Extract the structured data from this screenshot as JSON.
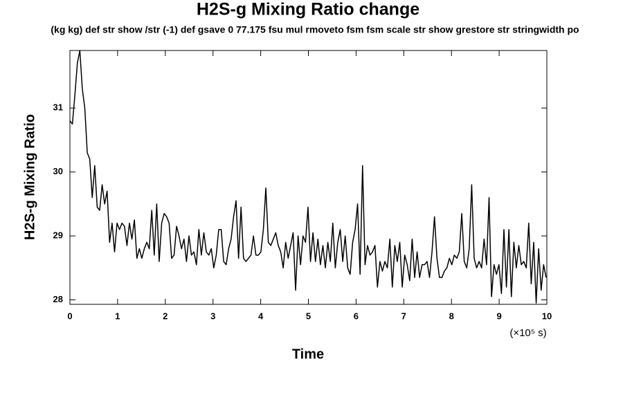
{
  "chart_data": {
    "type": "line",
    "title": "H2S-g Mixing Ratio change",
    "subtitle": "(kg kg) def str show /str (-1) def gsave 0 77.175 fsu mul rmoveto fsm fsm scale str show grestore str stringwidth po",
    "x_label": "Time",
    "x_unit": "(×10⁵ s)",
    "y_label": "H2S-g Mixing Ratio",
    "x": [
      0,
      0.052,
      0.104,
      0.156,
      0.208,
      0.26,
      0.312,
      0.364,
      0.416,
      0.468,
      0.52,
      0.572,
      0.624,
      0.676,
      0.728,
      0.78,
      0.832,
      0.884,
      0.936,
      0.988,
      1.04,
      1.092,
      1.144,
      1.196,
      1.248,
      1.3,
      1.352,
      1.404,
      1.456,
      1.508,
      1.56,
      1.612,
      1.664,
      1.716,
      1.768,
      1.82,
      1.872,
      1.924,
      1.976,
      2.028,
      2.08,
      2.132,
      2.184,
      2.236,
      2.288,
      2.34,
      2.392,
      2.444,
      2.496,
      2.548,
      2.6,
      2.652,
      2.704,
      2.756,
      2.808,
      2.86,
      2.912,
      2.964,
      3.016,
      3.068,
      3.12,
      3.172,
      3.224,
      3.276,
      3.328,
      3.38,
      3.432,
      3.484,
      3.536,
      3.588,
      3.64,
      3.692,
      3.744,
      3.796,
      3.848,
      3.9,
      3.952,
      4.004,
      4.056,
      4.108,
      4.16,
      4.212,
      4.264,
      4.316,
      4.368,
      4.42,
      4.472,
      4.524,
      4.576,
      4.628,
      4.68,
      4.732,
      4.784,
      4.836,
      4.888,
      4.94,
      4.992,
      5.044,
      5.096,
      5.148,
      5.2,
      5.252,
      5.304,
      5.356,
      5.408,
      5.46,
      5.512,
      5.564,
      5.616,
      5.668,
      5.72,
      5.772,
      5.824,
      5.876,
      5.928,
      5.98,
      6.032,
      6.084,
      6.136,
      6.188,
      6.24,
      6.292,
      6.344,
      6.396,
      6.448,
      6.5,
      6.552,
      6.604,
      6.656,
      6.708,
      6.76,
      6.812,
      6.864,
      6.916,
      6.968,
      7.02,
      7.072,
      7.124,
      7.176,
      7.228,
      7.28,
      7.332,
      7.384,
      7.436,
      7.488,
      7.54,
      7.592,
      7.644,
      7.696,
      7.748,
      7.8,
      7.852,
      7.904,
      7.956,
      8.008,
      8.06,
      8.112,
      8.164,
      8.216,
      8.268,
      8.32,
      8.372,
      8.424,
      8.476,
      8.528,
      8.58,
      8.632,
      8.684,
      8.736,
      8.788,
      8.84,
      8.892,
      8.944,
      8.996,
      9.048,
      9.1,
      9.152,
      9.204,
      9.256,
      9.308,
      9.36,
      9.412,
      9.464,
      9.516,
      9.568,
      9.62,
      9.672,
      9.724,
      9.776,
      9.828,
      9.88,
      9.932,
      9.984
    ],
    "series": [
      {
        "color": "#000000",
        "values": [
          30.8,
          30.75,
          31.2,
          31.7,
          31.9,
          31.3,
          31.0,
          30.3,
          30.2,
          29.6,
          30.1,
          29.45,
          29.4,
          29.8,
          29.5,
          29.7,
          28.9,
          29.2,
          28.75,
          29.2,
          29.1,
          29.2,
          29.15,
          28.85,
          29.2,
          28.95,
          29.25,
          28.65,
          28.8,
          28.65,
          28.8,
          28.9,
          28.8,
          29.4,
          28.7,
          29.5,
          28.6,
          29.2,
          29.35,
          29.3,
          29.2,
          28.65,
          28.7,
          29.15,
          29.0,
          28.8,
          28.95,
          28.6,
          29.0,
          28.7,
          28.75,
          28.55,
          29.1,
          28.7,
          29.05,
          28.75,
          28.7,
          28.8,
          28.5,
          28.7,
          29.1,
          29.1,
          28.6,
          28.55,
          28.8,
          28.95,
          29.3,
          29.55,
          28.65,
          29.45,
          28.65,
          28.6,
          28.65,
          28.7,
          29.0,
          28.7,
          28.7,
          28.75,
          29.1,
          29.75,
          28.9,
          28.85,
          28.95,
          29.05,
          28.85,
          28.75,
          28.5,
          28.9,
          28.65,
          28.85,
          29.05,
          28.15,
          29.0,
          28.55,
          29.0,
          28.9,
          29.45,
          28.6,
          29.05,
          28.6,
          28.95,
          28.55,
          28.85,
          28.5,
          28.9,
          28.6,
          29.2,
          28.5,
          28.9,
          29.1,
          28.6,
          29.0,
          28.5,
          28.4,
          28.9,
          29.1,
          29.5,
          28.4,
          30.1,
          28.55,
          28.85,
          28.7,
          28.75,
          28.85,
          28.2,
          28.6,
          28.45,
          28.6,
          28.5,
          28.95,
          28.2,
          28.85,
          28.6,
          28.9,
          28.2,
          28.7,
          28.55,
          28.3,
          28.95,
          28.35,
          28.75,
          28.35,
          28.55,
          28.55,
          28.6,
          28.35,
          28.75,
          29.3,
          28.65,
          28.35,
          28.35,
          28.45,
          28.5,
          28.65,
          28.55,
          28.7,
          28.65,
          28.75,
          29.35,
          28.6,
          28.5,
          28.8,
          29.8,
          28.65,
          28.5,
          28.6,
          28.5,
          28.95,
          28.55,
          29.6,
          28.05,
          28.55,
          28.4,
          28.55,
          28.1,
          29.1,
          28.2,
          29.1,
          28.05,
          28.9,
          28.5,
          28.85,
          28.55,
          28.6,
          28.5,
          29.2,
          28.25,
          28.9,
          27.95,
          28.8,
          28.15,
          28.55,
          28.35
        ]
      }
    ],
    "xlim": [
      0,
      10
    ],
    "xticks": [
      0,
      1,
      2,
      3,
      4,
      5,
      6,
      7,
      8,
      9,
      10
    ],
    "ylim": [
      27.93,
      31.9
    ],
    "yticks": [
      28,
      29,
      30,
      31
    ]
  }
}
